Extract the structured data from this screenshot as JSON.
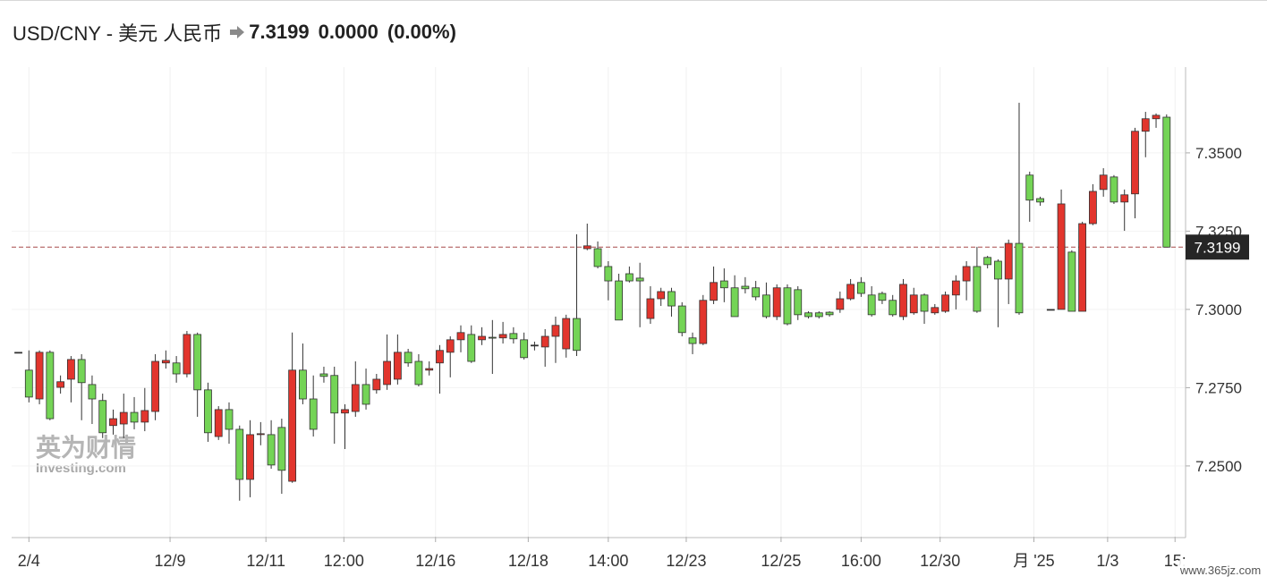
{
  "chart_data": {
    "type": "candlestick",
    "title": "USD/CNY - 美元 人民币",
    "change": "0.0000",
    "change_pct": "(0.00%)",
    "price_line": {
      "value": 7.3199,
      "label": "7.3199"
    },
    "watermark": [
      "英为财情",
      "Investing.com"
    ],
    "site_watermark": "www.365jz.com",
    "up_color": "#e2352d",
    "down_color": "#74d456",
    "price_line_color": "#a84a4a",
    "grid": true,
    "xlim": [
      -0.64,
      110.8
    ],
    "ylim": [
      7.2274,
      7.3774
    ],
    "yticks": [
      {
        "value": 7.25,
        "label": "7.2500"
      },
      {
        "value": 7.275,
        "label": "7.2750"
      },
      {
        "value": 7.3,
        "label": "7.3000"
      },
      {
        "value": 7.325,
        "label": "7.3250"
      },
      {
        "value": 7.35,
        "label": "7.3500"
      }
    ],
    "xticks": [
      {
        "value": 1,
        "label": "2/4"
      },
      {
        "value": 14.4,
        "label": "12/9"
      },
      {
        "value": 23.5,
        "label": "12/11"
      },
      {
        "value": 30.9,
        "label": "12:00"
      },
      {
        "value": 39.6,
        "label": "12/16"
      },
      {
        "value": 48.4,
        "label": "12/18"
      },
      {
        "value": 56,
        "label": "14:00"
      },
      {
        "value": 63.4,
        "label": "12/23"
      },
      {
        "value": 72.4,
        "label": "12/25"
      },
      {
        "value": 80,
        "label": "16:00"
      },
      {
        "value": 87.5,
        "label": "12/30"
      },
      {
        "value": 96.4,
        "label": "月 '25"
      },
      {
        "value": 103.4,
        "label": "1/3"
      },
      {
        "value": 109.8,
        "label": "15:"
      }
    ],
    "x": [
      0,
      1,
      2,
      3,
      4,
      5,
      6,
      7,
      8,
      9,
      10,
      11,
      12,
      13,
      14,
      15,
      16,
      17,
      18,
      19,
      20,
      21,
      22,
      23,
      24,
      25,
      26,
      27,
      28,
      29,
      30,
      31,
      32,
      33,
      34,
      35,
      36,
      37,
      38,
      39,
      40,
      41,
      42,
      43,
      44,
      45,
      46,
      47,
      48,
      49,
      50,
      51,
      52,
      53,
      54,
      55,
      56,
      57,
      58,
      59,
      60,
      61,
      62,
      63,
      64,
      65,
      66,
      67,
      68,
      69,
      70,
      71,
      72,
      73,
      74,
      75,
      76,
      77,
      78,
      79,
      80,
      81,
      82,
      83,
      84,
      85,
      86,
      87,
      88,
      89,
      90,
      91,
      92,
      93,
      94,
      95,
      96,
      97,
      98,
      99,
      100,
      101,
      102,
      103,
      104,
      105,
      106,
      107,
      108,
      109
    ],
    "open": [
      7.2863,
      7.2806,
      7.2714,
      7.2863,
      7.2751,
      7.2777,
      7.284,
      7.276,
      7.2709,
      7.2629,
      7.2634,
      7.2671,
      7.264,
      7.2674,
      7.2829,
      7.2829,
      7.2794,
      7.292,
      7.2743,
      7.2594,
      7.268,
      7.2617,
      7.2457,
      7.26,
      7.26,
      7.2623,
      7.2451,
      7.2806,
      7.2714,
      7.2794,
      7.2789,
      7.2669,
      7.2674,
      7.276,
      7.2743,
      7.276,
      7.2777,
      7.2863,
      7.2834,
      7.2806,
      7.2829,
      7.2863,
      7.2903,
      7.292,
      7.2903,
      7.2911,
      7.2909,
      7.2923,
      7.2903,
      7.2886,
      7.288,
      7.2914,
      7.2874,
      7.2971,
      7.3194,
      7.3194,
      7.3137,
      7.3091,
      7.3114,
      7.31,
      7.2971,
      7.3034,
      7.3057,
      7.3011,
      7.2909,
      7.2891,
      7.3029,
      7.3091,
      7.3069,
      7.3074,
      7.3069,
      7.3046,
      7.2977,
      7.3069,
      7.3063,
      7.2989,
      7.2989,
      7.2991,
      7.3,
      7.3034,
      7.3086,
      7.3046,
      7.3051,
      7.3029,
      7.2977,
      7.2989,
      7.3046,
      7.2989,
      7.2994,
      7.3046,
      7.3091,
      7.3137,
      7.3166,
      7.3154,
      7.3097,
      7.3211,
      7.3429,
      7.3354,
      7.3,
      7.3,
      7.3183,
      7.2994,
      7.3274,
      7.3383,
      7.3423,
      7.3343,
      7.3369,
      7.3569,
      7.3609,
      7.3614
    ],
    "high": [
      7.2863,
      7.2869,
      7.2869,
      7.2869,
      7.2789,
      7.2851,
      7.2857,
      7.2789,
      7.2731,
      7.268,
      7.2731,
      7.272,
      7.2749,
      7.2857,
      7.2869,
      7.2851,
      7.2931,
      7.2926,
      7.2766,
      7.2691,
      7.2703,
      7.2629,
      7.2646,
      7.264,
      7.2646,
      7.2651,
      7.2926,
      7.2891,
      7.2789,
      7.2817,
      7.2817,
      7.2697,
      7.2834,
      7.2811,
      7.2794,
      7.292,
      7.292,
      7.2874,
      7.2857,
      7.2834,
      7.2886,
      7.2914,
      7.2949,
      7.2949,
      7.2943,
      7.2966,
      7.296,
      7.2943,
      7.2926,
      7.2897,
      7.2937,
      7.2977,
      7.2983,
      7.324,
      7.3274,
      7.3217,
      7.3154,
      7.3114,
      7.3137,
      7.3149,
      7.3074,
      7.3069,
      7.3069,
      7.3023,
      7.2926,
      7.3046,
      7.3137,
      7.3131,
      7.3109,
      7.3103,
      7.3091,
      7.3086,
      7.308,
      7.308,
      7.3074,
      7.2994,
      7.2994,
      7.2994,
      7.3057,
      7.3097,
      7.3103,
      7.3074,
      7.3057,
      7.3046,
      7.3097,
      7.3069,
      7.3051,
      7.3017,
      7.3057,
      7.3109,
      7.3154,
      7.32,
      7.3171,
      7.316,
      7.3223,
      7.366,
      7.344,
      7.336,
      7.3,
      7.3383,
      7.3189,
      7.328,
      7.34,
      7.3451,
      7.3429,
      7.3383,
      7.358,
      7.3631,
      7.3626,
      7.3623
    ],
    "low": [
      7.2863,
      7.2703,
      7.2697,
      7.2646,
      7.2731,
      7.2703,
      7.2646,
      7.2634,
      7.2589,
      7.26,
      7.2589,
      7.2617,
      7.2611,
      7.2646,
      7.2811,
      7.2766,
      7.2783,
      7.2657,
      7.2577,
      7.2583,
      7.2571,
      7.2389,
      7.24,
      7.2566,
      7.2491,
      7.2411,
      7.2446,
      7.2697,
      7.2594,
      7.2766,
      7.2571,
      7.2554,
      7.2657,
      7.268,
      7.2731,
      7.2743,
      7.276,
      7.2817,
      7.2754,
      7.2789,
      7.2731,
      7.2783,
      7.2863,
      7.2829,
      7.2886,
      7.2794,
      7.2891,
      7.2891,
      7.284,
      7.2869,
      7.2817,
      7.2829,
      7.2846,
      7.2851,
      7.3189,
      7.3131,
      7.3029,
      7.2966,
      7.3086,
      7.2943,
      7.2954,
      7.3011,
      7.2977,
      7.2914,
      7.2857,
      7.2886,
      7.3017,
      7.3023,
      7.2977,
      7.3051,
      7.3029,
      7.2971,
      7.2966,
      7.2949,
      7.2966,
      7.2971,
      7.2971,
      7.2977,
      7.2989,
      7.3029,
      7.304,
      7.2977,
      7.3017,
      7.2977,
      7.2966,
      7.2983,
      7.2954,
      7.2983,
      7.2989,
      7.3,
      7.3029,
      7.2989,
      7.3131,
      7.2943,
      7.3017,
      7.2983,
      7.328,
      7.3331,
      7.3,
      7.3,
      7.2994,
      7.2994,
      7.3269,
      7.336,
      7.3337,
      7.3251,
      7.3291,
      7.3486,
      7.358,
      7.3199
    ],
    "close": [
      7.2863,
      7.272,
      7.2863,
      7.2651,
      7.2769,
      7.284,
      7.2766,
      7.2714,
      7.2606,
      7.2651,
      7.2671,
      7.264,
      7.2677,
      7.2834,
      7.2837,
      7.2794,
      7.292,
      7.2743,
      7.2606,
      7.268,
      7.2617,
      7.2457,
      7.26,
      7.2603,
      7.2503,
      7.2486,
      7.2806,
      7.2714,
      7.2617,
      7.2786,
      7.2669,
      7.268,
      7.276,
      7.2697,
      7.2777,
      7.2834,
      7.2863,
      7.2829,
      7.276,
      7.2811,
      7.2869,
      7.2903,
      7.2926,
      7.2834,
      7.2914,
      7.2909,
      7.292,
      7.2906,
      7.2846,
      7.2886,
      7.2914,
      7.2949,
      7.2971,
      7.2869,
      7.3203,
      7.3137,
      7.3091,
      7.2966,
      7.3091,
      7.3091,
      7.3034,
      7.3057,
      7.3011,
      7.2926,
      7.2891,
      7.3029,
      7.3086,
      7.3069,
      7.2977,
      7.3066,
      7.304,
      7.2977,
      7.3069,
      7.2954,
      7.2983,
      7.2977,
      7.2977,
      7.2983,
      7.3034,
      7.308,
      7.3051,
      7.2983,
      7.3029,
      7.2983,
      7.308,
      7.3046,
      7.2994,
      7.3006,
      7.3046,
      7.3091,
      7.3137,
      7.2994,
      7.3143,
      7.3097,
      7.3211,
      7.2989,
      7.3349,
      7.3343,
      7.3,
      7.3337,
      7.2994,
      7.3274,
      7.3377,
      7.3429,
      7.3343,
      7.3366,
      7.3569,
      7.3609,
      7.362,
      7.3199
    ]
  }
}
